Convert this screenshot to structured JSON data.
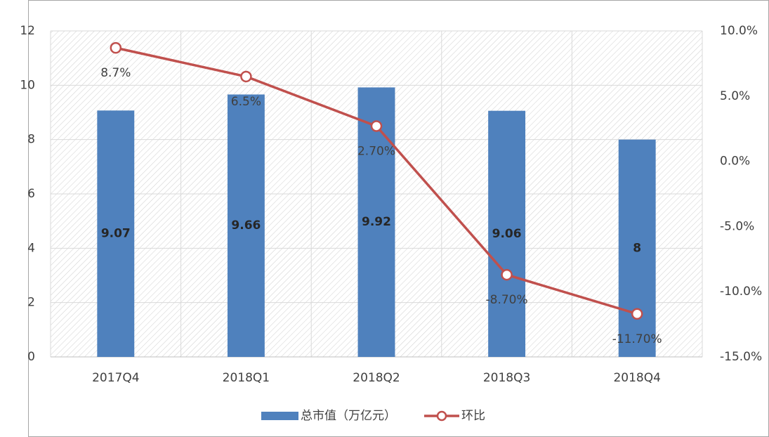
{
  "chart_data": {
    "type": "combo",
    "categories": [
      "2017Q4",
      "2018Q1",
      "2018Q2",
      "2018Q3",
      "2018Q4"
    ],
    "series": [
      {
        "name": "总市值（万亿元）",
        "type": "bar",
        "color": "#4f81bd",
        "values": [
          9.07,
          9.66,
          9.92,
          9.06,
          8
        ]
      },
      {
        "name": "环比",
        "type": "line",
        "axis": "y2",
        "color": "#c0504d",
        "values": [
          8.7,
          6.5,
          2.7,
          -8.7,
          -11.7
        ],
        "value_labels": [
          "8.7%",
          "6.5%",
          "2.70%",
          "-8.70%",
          "-11.70%"
        ]
      }
    ],
    "ylim": [
      0,
      12
    ],
    "yticks": [
      0,
      2,
      4,
      6,
      8,
      10,
      12
    ],
    "y2lim": [
      -15,
      10
    ],
    "y2ticks": [
      {
        "value": -15,
        "label": "-15.0%"
      },
      {
        "value": -10,
        "label": "-10.0%"
      },
      {
        "value": -5,
        "label": "-5.0%"
      },
      {
        "value": 0,
        "label": "0.0%"
      },
      {
        "value": 5,
        "label": "5.0%"
      },
      {
        "value": 10,
        "label": "10.0%"
      }
    ],
    "grid": true,
    "legend": "bottom"
  }
}
